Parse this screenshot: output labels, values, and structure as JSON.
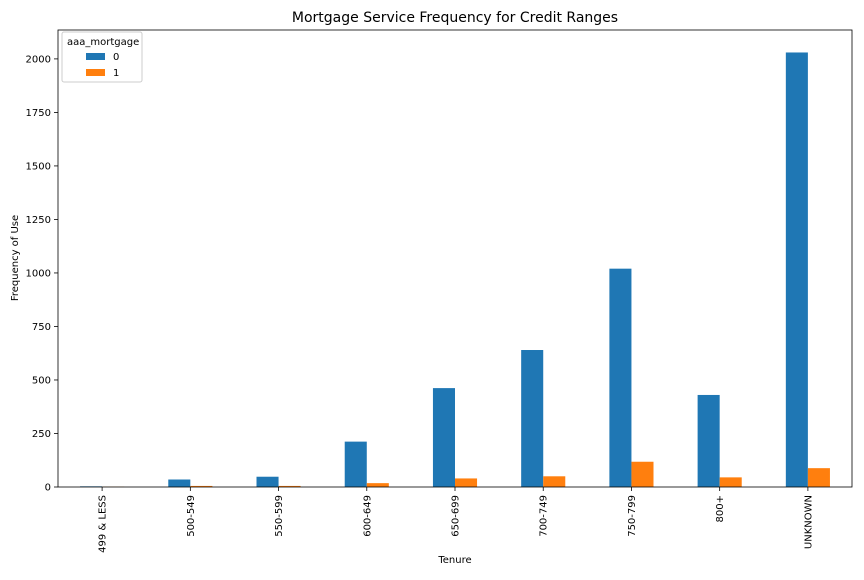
{
  "chart_data": {
    "type": "bar",
    "title": "Mortgage Service Frequency for Credit Ranges",
    "xlabel": "Tenure",
    "ylabel": "Frequency of Use",
    "categories": [
      "499 & LESS",
      "500-549",
      "550-599",
      "600-649",
      "650-699",
      "700-749",
      "750-799",
      "800+",
      "UNKNOWN"
    ],
    "series": [
      {
        "name": "0",
        "color": "#1f77b4",
        "values": [
          3,
          35,
          48,
          212,
          462,
          640,
          1020,
          430,
          2030
        ]
      },
      {
        "name": "1",
        "color": "#ff7f0e",
        "values": [
          1,
          5,
          5,
          18,
          40,
          50,
          118,
          45,
          88
        ]
      }
    ],
    "ylim": [
      0,
      2135
    ],
    "yticks": [
      0,
      250,
      500,
      750,
      1000,
      1250,
      1500,
      1750,
      2000
    ],
    "legend": {
      "title": "aaa_mortgage",
      "placement": "top-left"
    },
    "grid": false
  }
}
